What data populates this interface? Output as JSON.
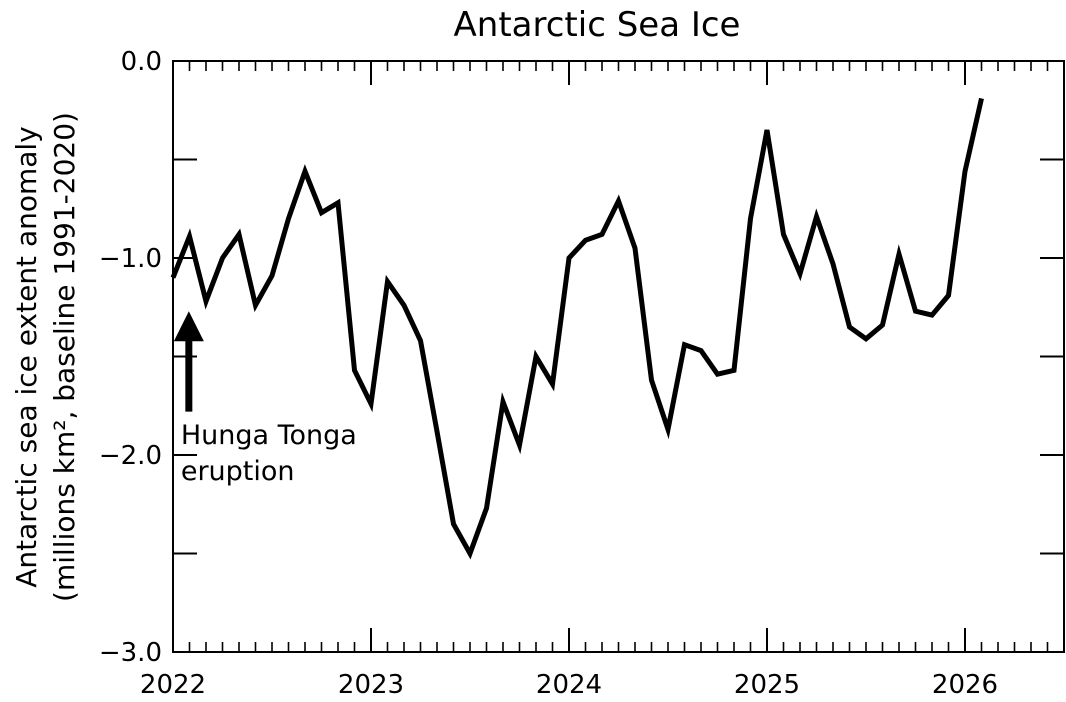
{
  "chart_data": {
    "type": "line",
    "title": "Antarctic Sea Ice",
    "ylabel_line1": "Antarctic sea ice extent anomaly",
    "ylabel_line2": "(millions km², baseline 1991-2020)",
    "xlabel": "",
    "xlim": [
      2022.0,
      2026.5
    ],
    "ylim": [
      -3.0,
      0.0
    ],
    "xticks": [
      2022,
      2023,
      2024,
      2025,
      2026
    ],
    "xtick_labels": [
      "2022",
      "2023",
      "2024",
      "2025",
      "2026"
    ],
    "yticks": [
      0.0,
      -1.0,
      -2.0,
      -3.0
    ],
    "ytick_labels": [
      "0.0",
      "−1.0",
      "−2.0",
      "−3.0"
    ],
    "grid": false,
    "line_color": "#000000",
    "series": [
      {
        "x": [
          2022.0,
          2022.0833,
          2022.1667,
          2022.25,
          2022.3333,
          2022.4167,
          2022.5,
          2022.5833,
          2022.6667,
          2022.75,
          2022.8333,
          2022.9167,
          2023.0,
          2023.0833,
          2023.1667,
          2023.25,
          2023.3333,
          2023.4167,
          2023.5,
          2023.5833,
          2023.6667,
          2023.75,
          2023.8333,
          2023.9167,
          2024.0,
          2024.0833,
          2024.1667,
          2024.25,
          2024.3333,
          2024.4167,
          2024.5,
          2024.5833,
          2024.6667,
          2024.75,
          2024.8333,
          2024.9167,
          2025.0,
          2025.0833,
          2025.1667,
          2025.25,
          2025.3333,
          2025.4167,
          2025.5,
          2025.5833,
          2025.6667,
          2025.75,
          2025.8333,
          2025.9167,
          2026.0,
          2026.0833
        ],
        "y": [
          -1.1,
          -0.89,
          -1.22,
          -1.0,
          -0.88,
          -1.24,
          -1.09,
          -0.8,
          -0.56,
          -0.77,
          -0.72,
          -1.57,
          -1.74,
          -1.12,
          -1.24,
          -1.42,
          -1.88,
          -2.35,
          -2.5,
          -2.27,
          -1.73,
          -1.95,
          -1.5,
          -1.64,
          -1.0,
          -0.91,
          -0.88,
          -0.71,
          -0.95,
          -1.62,
          -1.87,
          -1.44,
          -1.47,
          -1.59,
          -1.57,
          -0.8,
          -0.35,
          -0.88,
          -1.08,
          -0.79,
          -1.03,
          -1.35,
          -1.41,
          -1.34,
          -0.98,
          -1.27,
          -1.29,
          -1.19,
          -0.56,
          -0.19
        ]
      }
    ],
    "annotations": [
      {
        "text_line1": "Hunga Tonga",
        "text_line2": "eruption",
        "x": 2022.08,
        "arrow_tip_y": -1.27,
        "arrow_tail_y": -1.78
      }
    ]
  }
}
